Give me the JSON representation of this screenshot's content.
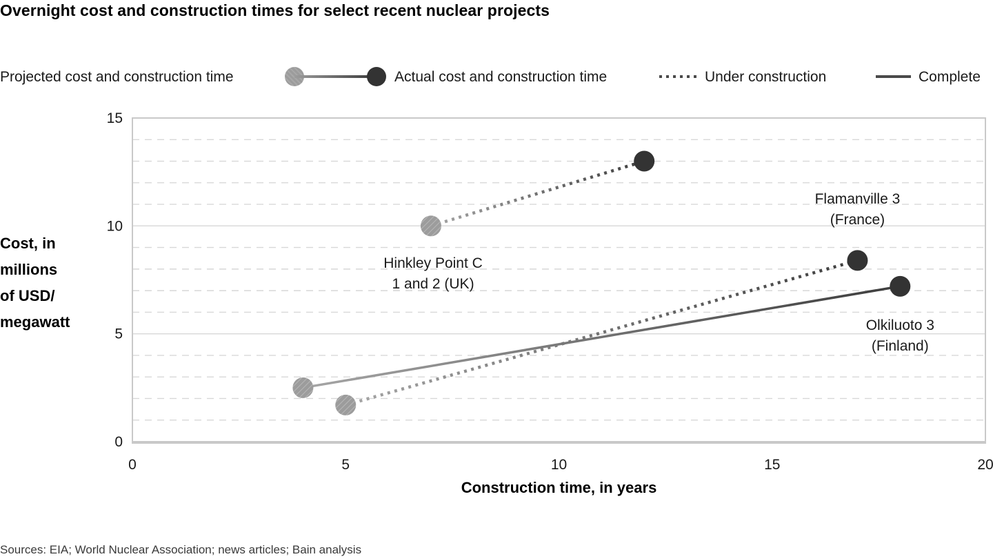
{
  "title": "Overnight cost and construction times for select recent nuclear projects",
  "legend": {
    "projected_label": "Projected cost and construction time",
    "actual_label": "Actual cost and construction time",
    "under_construction_label": "Under construction",
    "complete_label": "Complete"
  },
  "ylabel_display": "Cost, in\nmillions\nof USD/\nmegawatt",
  "sources": "Sources: EIA; World Nuclear Association; news articles; Bain analysis",
  "chart_data": {
    "type": "scatter",
    "title": "Overnight cost and construction times for select recent nuclear projects",
    "xlabel": "Construction time, in years",
    "ylabel": "Cost, in millions of USD/megawatt",
    "xlim": [
      0,
      20
    ],
    "ylim": [
      0,
      15
    ],
    "x_ticks": [
      0,
      5,
      10,
      15,
      20
    ],
    "y_ticks": [
      0,
      5,
      10,
      15
    ],
    "grid": "horizontal, minor dashed every 1 unit, major solid at 5 and 10",
    "legend_position": "top",
    "series": [
      {
        "name": "Hinkley Point C 1 and 2 (UK)",
        "status": "under_construction",
        "projected": {
          "x": 7,
          "y": 10
        },
        "actual": {
          "x": 12,
          "y": 13
        },
        "label": {
          "text": "Hinkley Point C\n1 and 2 (UK)",
          "x": 7.05,
          "y": 8.06
        }
      },
      {
        "name": "Flamanville 3 (France)",
        "status": "under_construction",
        "projected": {
          "x": 5,
          "y": 1.7
        },
        "actual": {
          "x": 17,
          "y": 8.4
        },
        "label": {
          "text": "Flamanville 3\n(France)",
          "x": 17.0,
          "y": 11.03
        }
      },
      {
        "name": "Olkiluoto 3 (Finland)",
        "status": "complete",
        "projected": {
          "x": 4,
          "y": 2.5
        },
        "actual": {
          "x": 18,
          "y": 7.2
        },
        "label": {
          "text": "Olkiluoto 3\n(Finland)",
          "x": 18.0,
          "y": 5.18
        }
      }
    ],
    "colors": {
      "projected_marker": "#9c9c9c",
      "actual_marker": "#333333",
      "line_start": "#a6a6a6",
      "line_end": "#3d3d3d",
      "grid": "#d8d8d8",
      "border": "#c9c9c9"
    }
  }
}
